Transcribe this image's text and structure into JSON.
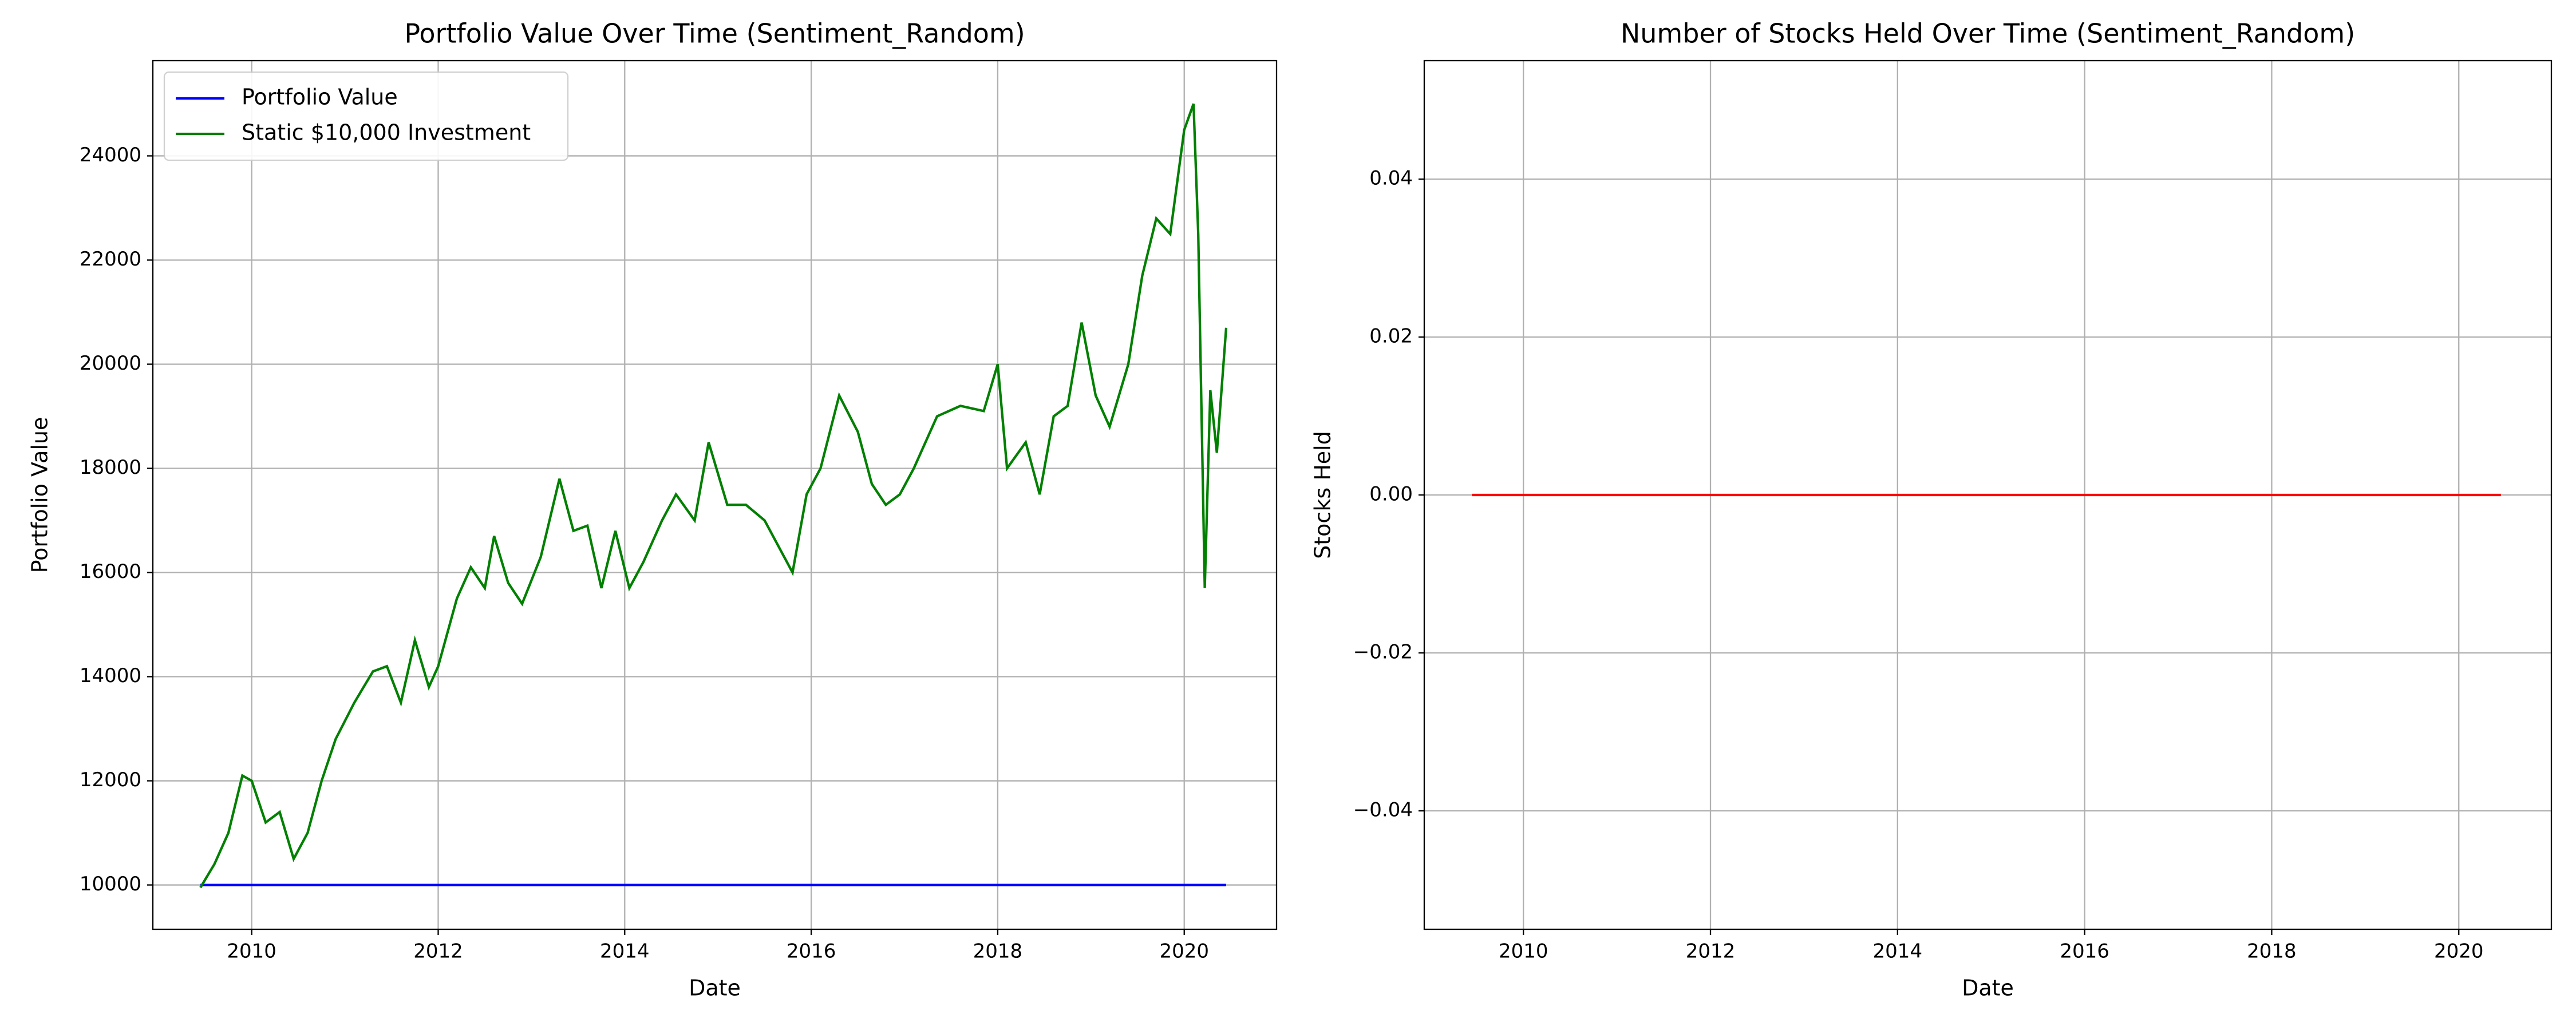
{
  "chart_data": [
    {
      "type": "line",
      "title": "Portfolio Value Over Time (Sentiment_Random)",
      "xlabel": "Date",
      "ylabel": "Portfolio Value",
      "x": [
        2009.45,
        2009.6,
        2009.75,
        2009.9,
        2010.0,
        2010.15,
        2010.3,
        2010.45,
        2010.6,
        2010.75,
        2010.9,
        2011.1,
        2011.3,
        2011.45,
        2011.6,
        2011.75,
        2011.9,
        2012.0,
        2012.2,
        2012.35,
        2012.5,
        2012.6,
        2012.75,
        2012.9,
        2013.1,
        2013.3,
        2013.45,
        2013.6,
        2013.75,
        2013.9,
        2014.05,
        2014.2,
        2014.4,
        2014.55,
        2014.75,
        2014.9,
        2015.1,
        2015.3,
        2015.5,
        2015.65,
        2015.8,
        2015.95,
        2016.1,
        2016.3,
        2016.5,
        2016.65,
        2016.8,
        2016.95,
        2017.1,
        2017.35,
        2017.6,
        2017.85,
        2018.0,
        2018.1,
        2018.3,
        2018.45,
        2018.6,
        2018.75,
        2018.9,
        2019.05,
        2019.2,
        2019.4,
        2019.55,
        2019.7,
        2019.85,
        2020.0,
        2020.1,
        2020.15,
        2020.22,
        2020.28,
        2020.35,
        2020.45
      ],
      "series": [
        {
          "name": "Portfolio Value",
          "color": "#0000ff",
          "values": [
            10000,
            10000,
            10000,
            10000,
            10000,
            10000,
            10000,
            10000,
            10000,
            10000,
            10000,
            10000,
            10000,
            10000,
            10000,
            10000,
            10000,
            10000,
            10000,
            10000,
            10000,
            10000,
            10000,
            10000,
            10000,
            10000,
            10000,
            10000,
            10000,
            10000,
            10000,
            10000,
            10000,
            10000,
            10000,
            10000,
            10000,
            10000,
            10000,
            10000,
            10000,
            10000,
            10000,
            10000,
            10000,
            10000,
            10000,
            10000,
            10000,
            10000,
            10000,
            10000,
            10000,
            10000,
            10000,
            10000,
            10000,
            10000,
            10000,
            10000,
            10000,
            10000,
            10000,
            10000,
            10000,
            10000,
            10000,
            10000,
            10000,
            10000,
            10000,
            10000
          ]
        },
        {
          "name": "Static $10,000 Investment",
          "color": "#008000",
          "values": [
            9950,
            10400,
            11000,
            12100,
            12000,
            11200,
            11400,
            10500,
            11000,
            12000,
            12800,
            13500,
            14100,
            14200,
            13500,
            14700,
            13800,
            14200,
            15500,
            16100,
            15700,
            16700,
            15800,
            15400,
            16300,
            17800,
            16800,
            16900,
            15700,
            16800,
            15700,
            16200,
            17000,
            17500,
            17000,
            18500,
            17300,
            17300,
            17000,
            16500,
            16000,
            17500,
            18000,
            19400,
            18700,
            17700,
            17300,
            17500,
            18000,
            19000,
            19200,
            19100,
            20000,
            18000,
            18500,
            17500,
            19000,
            19200,
            20800,
            19400,
            18800,
            20000,
            21700,
            22800,
            22500,
            24500,
            25000,
            22500,
            15700,
            19500,
            18300,
            20700
          ]
        }
      ],
      "xlim": [
        2008.94,
        2020.99
      ],
      "xticks": [
        2010,
        2012,
        2014,
        2016,
        2018,
        2020
      ],
      "ylim": [
        9149,
        25829
      ],
      "yticks": [
        10000,
        12000,
        14000,
        16000,
        18000,
        20000,
        22000,
        24000
      ],
      "grid": true,
      "legend": "upper left"
    },
    {
      "type": "line",
      "title": "Number of Stocks Held Over Time (Sentiment_Random)",
      "xlabel": "Date",
      "ylabel": "Stocks Held",
      "x": [
        2009.45,
        2020.45
      ],
      "series": [
        {
          "color": "#ff0000",
          "values": [
            0,
            0
          ]
        }
      ],
      "xlim": [
        2008.94,
        2020.99
      ],
      "xticks": [
        2010,
        2012,
        2014,
        2016,
        2018,
        2020
      ],
      "ylim": [
        -0.055,
        0.055
      ],
      "yticks": [
        {
          "value": -0.04,
          "label": "−0.04"
        },
        {
          "value": -0.02,
          "label": "−0.02"
        },
        {
          "value": 0,
          "label": "0.00"
        },
        0.02,
        0.04
      ],
      "grid": true
    }
  ]
}
